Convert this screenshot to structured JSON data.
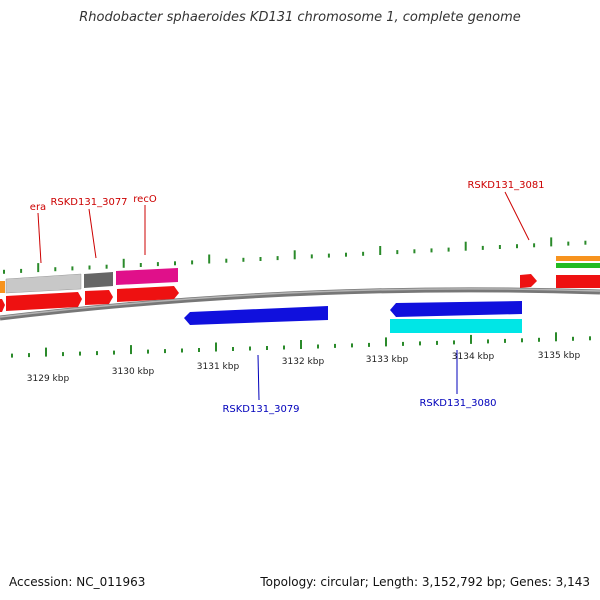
{
  "title": "Rhodobacter sphaeroides KD131 chromosome 1, complete genome",
  "footer": {
    "accession": "Accession: NC_011963",
    "stats": "Topology: circular; Length: 3,152,792 bp; Genes: 3,143"
  },
  "colors": {
    "forward_red": "#ee1111",
    "gray_light": "#bbbbbb",
    "gray_dark": "#666666",
    "magenta": "#e0108a",
    "orange": "#f7931e",
    "green": "#22bb22",
    "reverse_blue": "#1010dd",
    "cyan": "#00e6e6",
    "tick_green": "#2a8a2a",
    "backbone": "#888888",
    "label_red": "#cc0000",
    "label_blue": "#0000bb"
  },
  "scale_labels": [
    {
      "text": "3129 kbp",
      "kbp": 3129
    },
    {
      "text": "3130 kbp",
      "kbp": 3130
    },
    {
      "text": "3131 kbp",
      "kbp": 3131
    },
    {
      "text": "3132 kbp",
      "kbp": 3132
    },
    {
      "text": "3133 kbp",
      "kbp": 3133
    },
    {
      "text": "3134 kbp",
      "kbp": 3134
    },
    {
      "text": "3135 kbp",
      "kbp": 3135
    }
  ],
  "gene_labels": [
    {
      "name": "era",
      "strand": "forward"
    },
    {
      "name": "RSKD131_3077",
      "strand": "forward"
    },
    {
      "name": "recO",
      "strand": "forward"
    },
    {
      "name": "RSKD131_3081",
      "strand": "forward"
    },
    {
      "name": "RSKD131_3079",
      "strand": "reverse"
    },
    {
      "name": "RSKD131_3080",
      "strand": "reverse"
    }
  ]
}
